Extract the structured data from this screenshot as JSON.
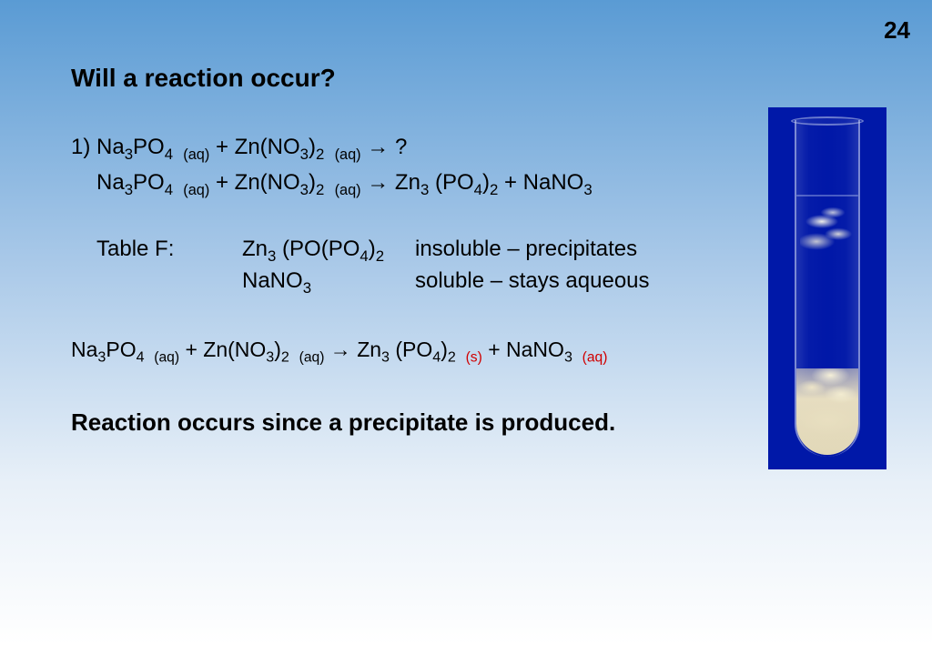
{
  "slide_number": "24",
  "title": "Will a reaction occur?",
  "eq1": {
    "number": "1)",
    "lhs_a": "Na",
    "lhs_a_sub": "3",
    "lhs_a2": "PO",
    "lhs_a2_sub": "4",
    "lhs_a_state": "(aq)",
    "plus1": "+",
    "lhs_b": "Zn(NO",
    "lhs_b_sub": "3",
    "lhs_b2": ")",
    "lhs_b2_sub": "2",
    "lhs_b_state": "(aq)",
    "arrow": "→",
    "qmark": "?"
  },
  "eq2": {
    "lhs_a": "Na",
    "lhs_a_sub": "3",
    "lhs_a2": "PO",
    "lhs_a2_sub": "4",
    "lhs_a_state": "(aq)",
    "plus1": "+",
    "lhs_b": "Zn(NO",
    "lhs_b_sub": "3",
    "lhs_b2": ")",
    "lhs_b2_sub": "2",
    "lhs_b_state": "(aq)",
    "arrow": "→",
    "rhs_a": "Zn",
    "rhs_a_sub": "3",
    "rhs_a2": "(PO",
    "rhs_a2_sub": "4",
    "rhs_a3": ")",
    "rhs_a3_sub": "2",
    "plus2": "+",
    "rhs_b": "NaNO",
    "rhs_b_sub": "3"
  },
  "tableF": {
    "label": "Table F:",
    "row1": {
      "comp": "Zn",
      "comp_sub": "3",
      "comp2": "(PO",
      "comp2_sub": "4",
      "comp3": ")",
      "comp3_sub": "2",
      "desc": "insoluble – precipitates"
    },
    "row2": {
      "comp": "NaNO",
      "comp_sub": "3",
      "desc": "soluble – stays aqueous"
    }
  },
  "eq3": {
    "lhs_a": "Na",
    "lhs_a_sub": "3",
    "lhs_a2": "PO",
    "lhs_a2_sub": "4",
    "lhs_a_state": "(aq)",
    "plus1": "+",
    "lhs_b": "Zn(NO",
    "lhs_b_sub": "3",
    "lhs_b2": ")",
    "lhs_b2_sub": "2",
    "lhs_b_state": "(aq)",
    "arrow": "→",
    "rhs_a": "Zn",
    "rhs_a_sub": "3",
    "rhs_a2": "(PO",
    "rhs_a2_sub": "4",
    "rhs_a3": ")",
    "rhs_a3_sub": "2",
    "rhs_a_state": "(s)",
    "plus2": "+",
    "rhs_b": "NaNO",
    "rhs_b_sub": "3",
    "rhs_b_state": "(aq)"
  },
  "conclusion": "Reaction occurs since a precipitate is produced.",
  "colors": {
    "red_state": "#d00000",
    "bg_top": "#5a9bd4",
    "bg_bottom": "#ffffff",
    "tube_bg": "#0018a8",
    "precipitate": "#e5dcc0"
  }
}
